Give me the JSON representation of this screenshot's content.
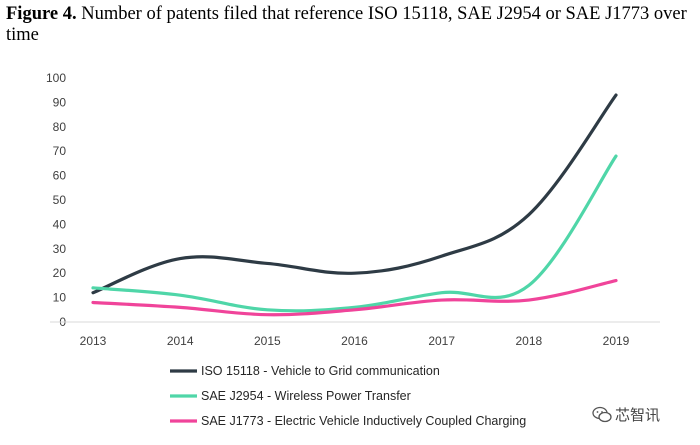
{
  "caption": {
    "label": "Figure 4.",
    "text": " Number of patents filed that reference ISO 15118, SAE J2954 or SAE J1773 over time"
  },
  "chart_data": {
    "type": "line",
    "title": "Number of patents filed that reference ISO 15118, SAE J2954 or SAE J1773 over time",
    "xlabel": "",
    "ylabel": "",
    "categories": [
      "2013",
      "2014",
      "2015",
      "2016",
      "2017",
      "2018",
      "2019"
    ],
    "ylim": [
      0,
      100
    ],
    "yticks": [
      0,
      10,
      20,
      30,
      40,
      50,
      60,
      70,
      80,
      90,
      100
    ],
    "grid": false,
    "legend_position": "bottom",
    "series": [
      {
        "name": "ISO 15118 - Vehicle to Grid communication",
        "color": "#2e3b45",
        "values": [
          12,
          26,
          24,
          20,
          27,
          44,
          93
        ]
      },
      {
        "name": "SAE J2954 - Wireless Power Transfer",
        "color": "#4fd6a8",
        "values": [
          14,
          11,
          5,
          6,
          12,
          15,
          68
        ]
      },
      {
        "name": "SAE J1773 - Electric Vehicle Inductively Coupled Charging",
        "color": "#f0449a",
        "values": [
          8,
          6,
          3,
          5,
          9,
          9,
          17
        ]
      }
    ]
  },
  "watermark": {
    "text": "芯智讯",
    "icon": "wechat-icon"
  }
}
